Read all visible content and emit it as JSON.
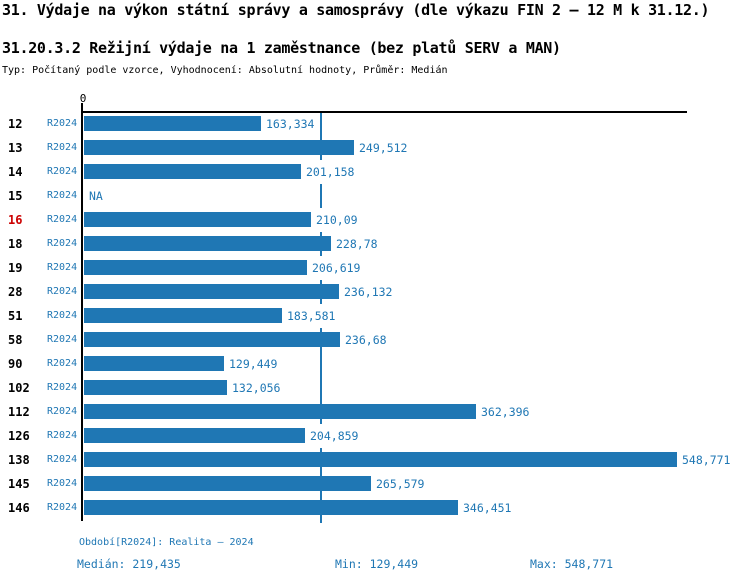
{
  "title": "31. Výdaje na výkon státní správy a samosprávy (dle výkazu FIN 2 – 12 M k 31.12.)",
  "subtitle": "31.20.3.2 Režijní výdaje na 1 zaměstnance (bez platů SERV a MAN)",
  "meta_line": "Typ: Počítaný podle vzorce, Vyhodnocení: Absolutní hodnoty, Průměr: Medián",
  "colors": {
    "bar": "#1f77b4",
    "blue_text": "#1f77b4",
    "highlight_row": "#cc0000",
    "axis": "#000000"
  },
  "chart_data": {
    "type": "bar",
    "orientation": "horizontal",
    "title": "31.20.3.2 Režijní výdaje na 1 zaměstnance (bez platů SERV a MAN)",
    "x_axis": {
      "origin_label": "0",
      "min": 0,
      "max": 558,
      "grid": false
    },
    "median_value": 219.435,
    "series_name": "R2024",
    "rows": [
      {
        "region": "12",
        "period": "R2024",
        "value": 163.334,
        "value_label": "163,334",
        "highlight": false
      },
      {
        "region": "13",
        "period": "R2024",
        "value": 249.512,
        "value_label": "249,512",
        "highlight": false
      },
      {
        "region": "14",
        "period": "R2024",
        "value": 201.158,
        "value_label": "201,158",
        "highlight": false
      },
      {
        "region": "15",
        "period": "R2024",
        "value": null,
        "value_label": "NA",
        "highlight": false
      },
      {
        "region": "16",
        "period": "R2024",
        "value": 210.09,
        "value_label": "210,09",
        "highlight": true
      },
      {
        "region": "18",
        "period": "R2024",
        "value": 228.78,
        "value_label": "228,78",
        "highlight": false
      },
      {
        "region": "19",
        "period": "R2024",
        "value": 206.619,
        "value_label": "206,619",
        "highlight": false
      },
      {
        "region": "28",
        "period": "R2024",
        "value": 236.132,
        "value_label": "236,132",
        "highlight": false
      },
      {
        "region": "51",
        "period": "R2024",
        "value": 183.581,
        "value_label": "183,581",
        "highlight": false
      },
      {
        "region": "58",
        "period": "R2024",
        "value": 236.68,
        "value_label": "236,68",
        "highlight": false
      },
      {
        "region": "90",
        "period": "R2024",
        "value": 129.449,
        "value_label": "129,449",
        "highlight": false
      },
      {
        "region": "102",
        "period": "R2024",
        "value": 132.056,
        "value_label": "132,056",
        "highlight": false
      },
      {
        "region": "112",
        "period": "R2024",
        "value": 362.396,
        "value_label": "362,396",
        "highlight": false
      },
      {
        "region": "126",
        "period": "R2024",
        "value": 204.859,
        "value_label": "204,859",
        "highlight": false
      },
      {
        "region": "138",
        "period": "R2024",
        "value": 548.771,
        "value_label": "548,771",
        "highlight": false
      },
      {
        "region": "145",
        "period": "R2024",
        "value": 265.579,
        "value_label": "265,579",
        "highlight": false
      },
      {
        "region": "146",
        "period": "R2024",
        "value": 346.451,
        "value_label": "346,451",
        "highlight": false
      }
    ]
  },
  "footer": {
    "period_line": "Období[R2024]: Realita – 2024",
    "median": "Medián: 219,435",
    "min": "Min: 129,449",
    "max": "Max: 548,771"
  }
}
